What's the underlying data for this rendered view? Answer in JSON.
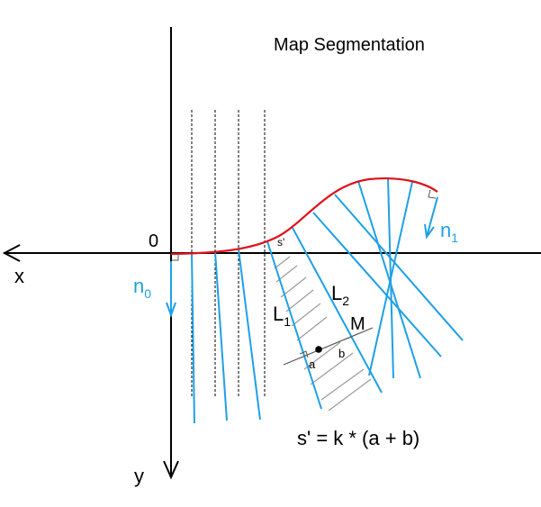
{
  "title": "Map Segmentation",
  "axes": {
    "x_label": "x",
    "y_label": "y",
    "origin_label": "0"
  },
  "normals": {
    "n0_main": "n",
    "n0_sub": "0",
    "n1_main": "n",
    "n1_sub": "1"
  },
  "lines": {
    "L1_main": "L",
    "L1_sub": "1",
    "L2_main": "L",
    "L2_sub": "2"
  },
  "labels": {
    "s_prime": "s'",
    "M": "M",
    "a": "a",
    "b": "b"
  },
  "formula": "s' = k * (a + b)",
  "colors": {
    "curve": "#e0101a",
    "normals": "#1ea0e6",
    "axes": "#000000",
    "hatch": "#9a9a9a"
  }
}
